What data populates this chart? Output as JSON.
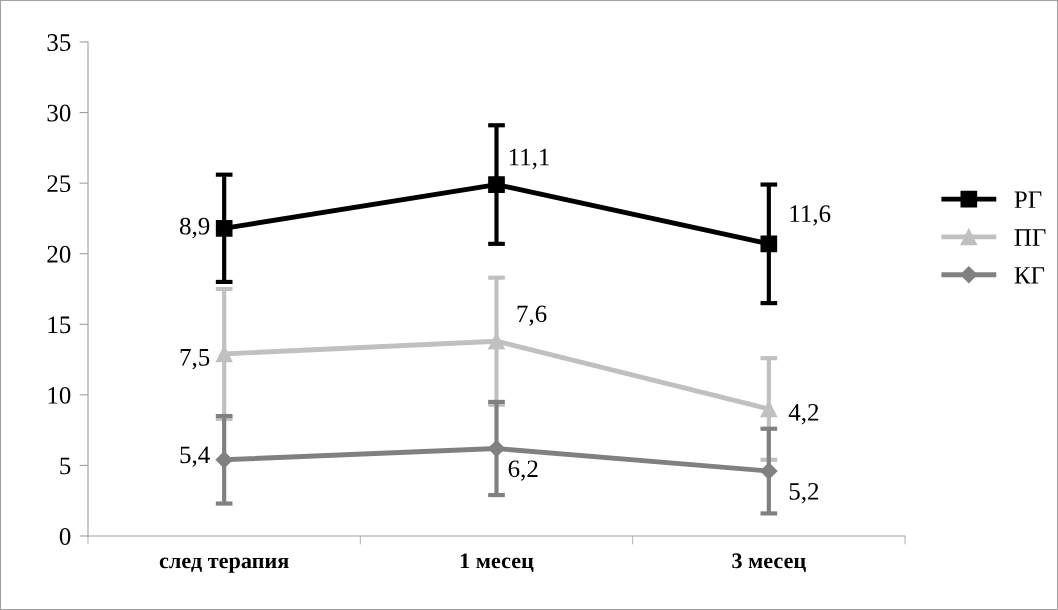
{
  "chart_data": {
    "type": "line",
    "categories": [
      "след терапия",
      "1 месец",
      "3 месец"
    ],
    "ylim": [
      0,
      35
    ],
    "yticks": [
      0,
      5,
      10,
      15,
      20,
      25,
      30,
      35
    ],
    "grid": false,
    "legend": "right",
    "line_style": "solid",
    "series": [
      {
        "name": "РГ",
        "color": "#000000",
        "marker": "square",
        "values": [
          21.8,
          24.9,
          20.7
        ],
        "errors": [
          3.8,
          4.2,
          4.2
        ]
      },
      {
        "name": "ПГ",
        "color": "#c0c0c0",
        "marker": "triangle",
        "values": [
          12.9,
          13.8,
          9.0
        ],
        "errors": [
          4.6,
          4.5,
          3.6
        ]
      },
      {
        "name": "КГ",
        "color": "#808080",
        "marker": "diamond",
        "values": [
          5.4,
          6.2,
          4.6
        ],
        "errors": [
          3.1,
          3.3,
          3.0
        ]
      }
    ],
    "annotations": [
      {
        "text": "8,9",
        "x": "след терапия",
        "y": 21.8
      },
      {
        "text": "11,1",
        "x": "1 месец",
        "y": 24.9
      },
      {
        "text": "11,6",
        "x": "3 месец",
        "y": 20.7
      },
      {
        "text": "7,5",
        "x": "след терапия",
        "y": 12.9
      },
      {
        "text": "7,6",
        "x": "1 месец",
        "y": 13.8
      },
      {
        "text": "4,2",
        "x": "3 месец",
        "y": 9.0
      },
      {
        "text": "5,4",
        "x": "след терапия",
        "y": 5.4
      },
      {
        "text": "6,2",
        "x": "1 месец",
        "y": 6.2
      },
      {
        "text": "5,2",
        "x": "3 месец",
        "y": 4.6
      }
    ]
  }
}
